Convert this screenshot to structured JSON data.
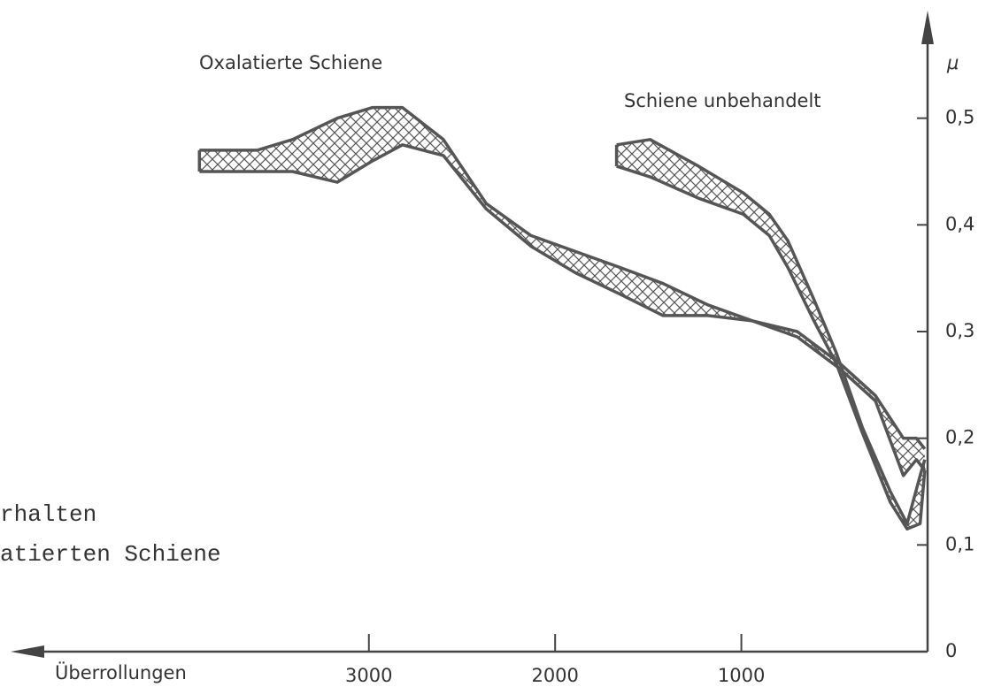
{
  "chart_data": {
    "type": "band",
    "y_label": "μ",
    "x_label": "Überrollungen",
    "annotations": [
      "rhalten",
      "atierten Schiene"
    ],
    "xlim": [
      4900,
      0
    ],
    "ylim": [
      0,
      0.6
    ],
    "xticks": [
      3000,
      2000,
      1000
    ],
    "yticks": [
      0,
      {
        "value": 0.1,
        "label": "0,1"
      },
      {
        "value": 0.2,
        "label": "0,2"
      },
      {
        "value": 0.3,
        "label": "0,3"
      },
      {
        "value": 0.4,
        "label": "0,4"
      },
      {
        "value": 0.5,
        "label": "0,5"
      }
    ],
    "color": "#555555",
    "series": [
      {
        "name": "Oxalatierte Schiene",
        "x": [
          3910,
          3600,
          3410,
          3170,
          2980,
          2820,
          2600,
          2370,
          2130,
          1890,
          1650,
          1420,
          1180,
          940,
          700,
          470,
          280,
          130,
          60,
          15
        ],
        "upper": [
          0.47,
          0.47,
          0.48,
          0.5,
          0.51,
          0.51,
          0.48,
          0.42,
          0.39,
          0.375,
          0.36,
          0.345,
          0.325,
          0.31,
          0.3,
          0.27,
          0.24,
          0.2,
          0.2,
          0.19
        ],
        "lower": [
          0.45,
          0.45,
          0.45,
          0.44,
          0.46,
          0.475,
          0.465,
          0.415,
          0.38,
          0.355,
          0.335,
          0.315,
          0.315,
          0.31,
          0.295,
          0.265,
          0.235,
          0.165,
          0.18,
          0.17
        ]
      },
      {
        "name": "Schiene unbehandelt",
        "x": [
          1670,
          1490,
          1230,
          990,
          850,
          750,
          610,
          490,
          350,
          200,
          110,
          40,
          15
        ],
        "upper": [
          0.475,
          0.48,
          0.455,
          0.43,
          0.41,
          0.385,
          0.33,
          0.28,
          0.21,
          0.15,
          0.12,
          0.165,
          0.18
        ],
        "lower": [
          0.455,
          0.445,
          0.425,
          0.41,
          0.39,
          0.36,
          0.31,
          0.27,
          0.205,
          0.14,
          0.115,
          0.12,
          0.17
        ]
      }
    ]
  }
}
